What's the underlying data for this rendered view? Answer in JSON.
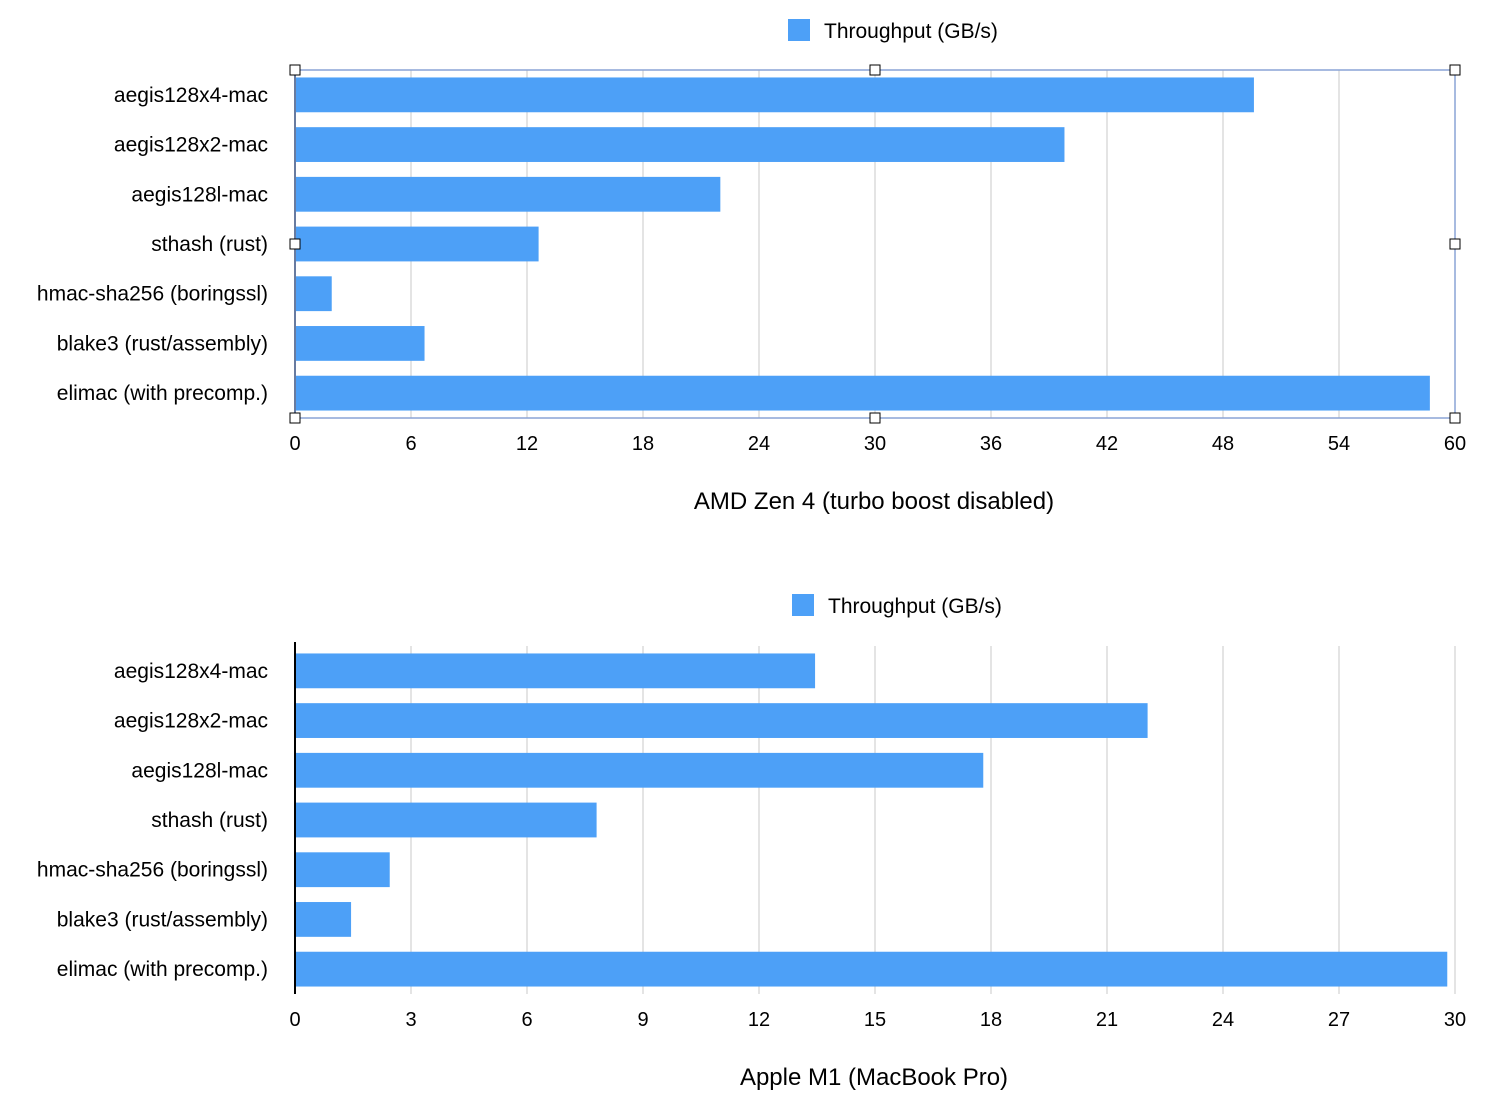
{
  "chart_data": [
    {
      "type": "bar",
      "orientation": "horizontal",
      "title": "AMD Zen 4 (turbo boost disabled)",
      "categories": [
        "aegis128x4-mac",
        "aegis128x2-mac",
        "aegis128l-mac",
        "sthash (rust)",
        "hmac-sha256 (boringssl)",
        "blake3 (rust/assembly)",
        "elimac (with precomp.)"
      ],
      "series": [
        {
          "name": "Throughput (GB/s)",
          "color": "#4da0f7",
          "values": [
            49.6,
            39.8,
            22.0,
            12.6,
            1.9,
            6.7,
            58.7
          ]
        }
      ],
      "xlim": [
        0,
        60
      ],
      "xticks": [
        "0",
        "6",
        "12",
        "18",
        "24",
        "30",
        "36",
        "42",
        "48",
        "54",
        "60"
      ],
      "grid": true,
      "legend_position": "top-center",
      "selected": true
    },
    {
      "type": "bar",
      "orientation": "horizontal",
      "title": "Apple M1 (MacBook Pro)",
      "categories": [
        "aegis128x4-mac",
        "aegis128x2-mac",
        "aegis128l-mac",
        "sthash (rust)",
        "hmac-sha256 (boringssl)",
        "blake3 (rust/assembly)",
        "elimac (with precomp.)"
      ],
      "series": [
        {
          "name": "Throughput (GB/s)",
          "color": "#4da0f7",
          "values": [
            13.45,
            22.05,
            17.8,
            7.8,
            2.45,
            1.45,
            29.8
          ]
        }
      ],
      "xlim": [
        0,
        30
      ],
      "xticks": [
        "0",
        "3",
        "6",
        "9",
        "12",
        "15",
        "18",
        "21",
        "24",
        "27",
        "30"
      ],
      "grid": true,
      "legend_position": "top-center",
      "selected": false
    }
  ]
}
